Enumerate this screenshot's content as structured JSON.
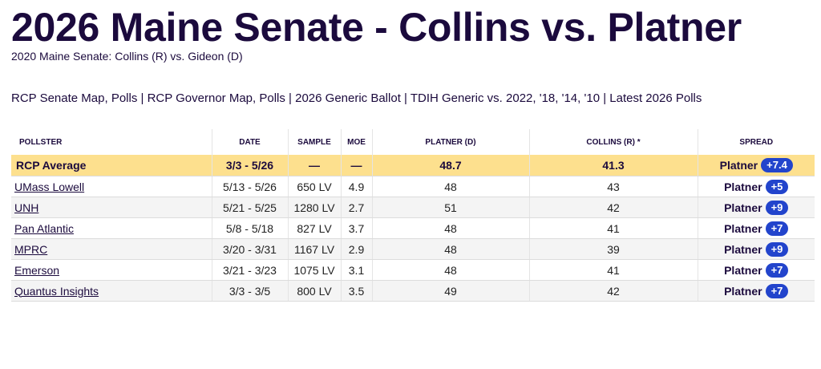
{
  "page": {
    "title": "2026 Maine Senate - Collins vs. Platner",
    "subtitle": "2020 Maine Senate: Collins (R) vs. Gideon (D)"
  },
  "links": [
    "RCP Senate Map",
    "Polls",
    "RCP Governor Map",
    "Polls",
    "2026 Generic Ballot",
    "TDIH Generic vs. 2022, '18, '14, '10",
    "Latest 2026 Polls"
  ],
  "table": {
    "headers": {
      "pollster": "POLLSTER",
      "date": "DATE",
      "sample": "SAMPLE",
      "moe": "MOE",
      "platner": "PLATNER (D)",
      "collins": "COLLINS (R) *",
      "spread": "SPREAD"
    },
    "average": {
      "pollster": "RCP Average",
      "date": "3/3 - 5/26",
      "sample": "—",
      "moe": "—",
      "platner": "48.7",
      "collins": "41.3",
      "spread_name": "Platner",
      "spread_value": "+7.4"
    },
    "rows": [
      {
        "pollster": "UMass Lowell",
        "date": "5/13 - 5/26",
        "sample": "650 LV",
        "moe": "4.9",
        "platner": "48",
        "collins": "43",
        "spread_name": "Platner",
        "spread_value": "+5"
      },
      {
        "pollster": "UNH",
        "date": "5/21 - 5/25",
        "sample": "1280 LV",
        "moe": "2.7",
        "platner": "51",
        "collins": "42",
        "spread_name": "Platner",
        "spread_value": "+9"
      },
      {
        "pollster": "Pan Atlantic",
        "date": "5/8 - 5/18",
        "sample": "827 LV",
        "moe": "3.7",
        "platner": "48",
        "collins": "41",
        "spread_name": "Platner",
        "spread_value": "+7"
      },
      {
        "pollster": "MPRC",
        "date": "3/20 - 3/31",
        "sample": "1167 LV",
        "moe": "2.9",
        "platner": "48",
        "collins": "39",
        "spread_name": "Platner",
        "spread_value": "+9"
      },
      {
        "pollster": "Emerson",
        "date": "3/21 - 3/23",
        "sample": "1075 LV",
        "moe": "3.1",
        "platner": "48",
        "collins": "41",
        "spread_name": "Platner",
        "spread_value": "+7"
      },
      {
        "pollster": "Quantus Insights",
        "date": "3/3 - 3/5",
        "sample": "800 LV",
        "moe": "3.5",
        "platner": "49",
        "collins": "42",
        "spread_name": "Platner",
        "spread_value": "+7"
      }
    ]
  },
  "colors": {
    "heading": "#1b0a3d",
    "average_row": "#fde08e",
    "badge": "#2244cc"
  }
}
